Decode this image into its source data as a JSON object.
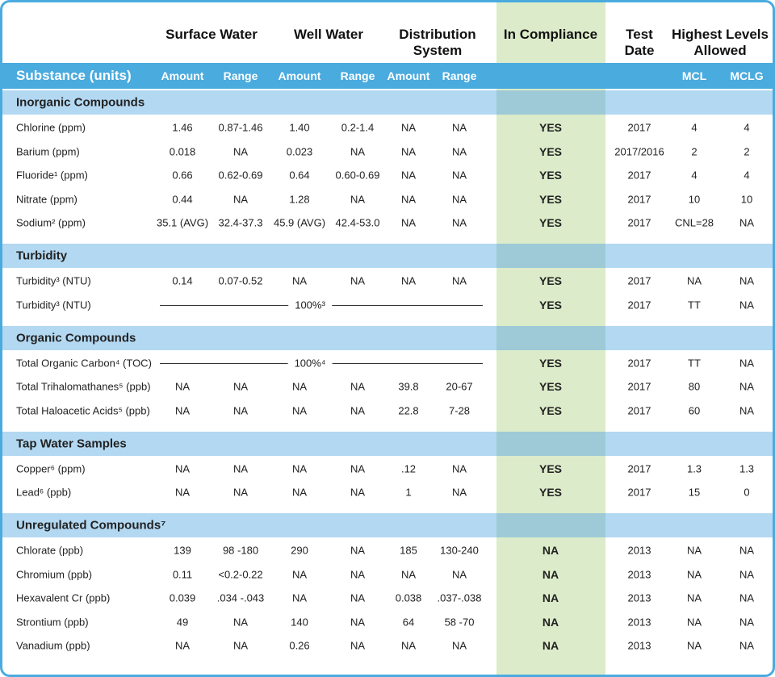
{
  "header": {
    "groups": [
      "Surface Water",
      "Well Water",
      "Distribution System",
      "In Compliance",
      "Test Date",
      "Highest Levels Allowed"
    ],
    "subheaders": [
      "Substance (units)",
      "Amount",
      "Range",
      "Amount",
      "Range",
      "Amount",
      "Range",
      "MCL",
      "MCLG"
    ]
  },
  "sections": [
    {
      "title": "Inorganic Compounds",
      "rows": [
        [
          "Chlorine (ppm)",
          "1.46",
          "0.87-1.46",
          "1.40",
          "0.2-1.4",
          "NA",
          "NA",
          "YES",
          "2017",
          "4",
          "4"
        ],
        [
          "Barium (ppm)",
          "0.018",
          "NA",
          "0.023",
          "NA",
          "NA",
          "NA",
          "YES",
          "2017/2016",
          "2",
          "2"
        ],
        [
          "Fluoride¹ (ppm)",
          "0.66",
          "0.62-0.69",
          "0.64",
          "0.60-0.69",
          "NA",
          "NA",
          "YES",
          "2017",
          "4",
          "4"
        ],
        [
          "Nitrate (ppm)",
          "0.44",
          "NA",
          "1.28",
          "NA",
          "NA",
          "NA",
          "YES",
          "2017",
          "10",
          "10"
        ],
        [
          "Sodium² (ppm)",
          "35.1 (AVG)",
          "32.4-37.3",
          "45.9 (AVG)",
          "42.4-53.0",
          "NA",
          "NA",
          "YES",
          "2017",
          "CNL=28",
          "NA"
        ]
      ]
    },
    {
      "title": "Turbidity",
      "rows": [
        [
          "Turbidity³ (NTU)",
          "0.14",
          "0.07-0.52",
          "NA",
          "NA",
          "NA",
          "NA",
          "YES",
          "2017",
          "NA",
          "NA"
        ],
        [
          "Turbidity³ (NTU)",
          "100%³",
          "YES",
          "2017",
          "TT",
          "NA"
        ]
      ]
    },
    {
      "title": "Organic Compounds",
      "rows": [
        [
          "Total Organic Carbon⁴ (TOC)",
          "100%⁴",
          "YES",
          "2017",
          "TT",
          "NA"
        ],
        [
          "Total Trihalomathanes⁵ (ppb)",
          "NA",
          "NA",
          "NA",
          "NA",
          "39.8",
          "20-67",
          "YES",
          "2017",
          "80",
          "NA"
        ],
        [
          "Total Haloacetic Acids⁵ (ppb)",
          "NA",
          "NA",
          "NA",
          "NA",
          "22.8",
          "7-28",
          "YES",
          "2017",
          "60",
          "NA"
        ]
      ]
    },
    {
      "title": "Tap Water Samples",
      "rows": [
        [
          "Copper⁶ (ppm)",
          "NA",
          "NA",
          "NA",
          "NA",
          ".12",
          "NA",
          "YES",
          "2017",
          "1.3",
          "1.3"
        ],
        [
          "Lead⁶ (ppb)",
          "NA",
          "NA",
          "NA",
          "NA",
          "1",
          "NA",
          "YES",
          "2017",
          "15",
          "0"
        ]
      ]
    },
    {
      "title": "Unregulated Compounds⁷",
      "rows": [
        [
          "Chlorate (ppb)",
          "139",
          "98 -180",
          "290",
          "NA",
          "185",
          "130-240",
          "NA",
          "2013",
          "NA",
          "NA"
        ],
        [
          "Chromium (ppb)",
          "0.11",
          "<0.2-0.22",
          "NA",
          "NA",
          "NA",
          "NA",
          "NA",
          "2013",
          "NA",
          "NA"
        ],
        [
          "Hexavalent Cr (ppb)",
          "0.039",
          ".034 -.043",
          "NA",
          "NA",
          "0.038",
          ".037-.038",
          "NA",
          "2013",
          "NA",
          "NA"
        ],
        [
          "Strontium (ppb)",
          "49",
          "NA",
          "140",
          "NA",
          "64",
          "58 -70",
          "NA",
          "2013",
          "NA",
          "NA"
        ],
        [
          "Vanadium (ppb)",
          "NA",
          "NA",
          "0.26",
          "NA",
          "NA",
          "NA",
          "NA",
          "2013",
          "NA",
          "NA"
        ]
      ]
    }
  ]
}
